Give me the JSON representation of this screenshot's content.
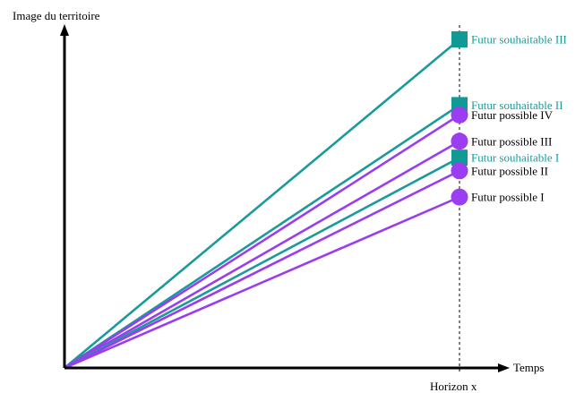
{
  "axes": {
    "y_label": "Image du territoire",
    "x_label": "Temps",
    "horizon_label": "Horizon x"
  },
  "colors": {
    "souhaitable": "#1a9a9a",
    "possible": "#9a3cf0",
    "marker_souhaitable": "#0f9a96",
    "marker_possible": "#9b3ef2",
    "axis": "#000000"
  },
  "futures": [
    {
      "id": "souhaitable-iii",
      "kind": "souhaitable",
      "label": "Futur souhaitable III",
      "level": 5
    },
    {
      "id": "souhaitable-ii",
      "kind": "souhaitable",
      "label": "Futur souhaitable II",
      "level": 4
    },
    {
      "id": "possible-iv",
      "kind": "possible",
      "label": "Futur possible IV",
      "level": 3.85
    },
    {
      "id": "possible-iii",
      "kind": "possible",
      "label": "Futur possible III",
      "level": 3.45
    },
    {
      "id": "souhaitable-i",
      "kind": "souhaitable",
      "label": "Futur souhaitable I",
      "level": 3.2
    },
    {
      "id": "possible-ii",
      "kind": "possible",
      "label": "Futur possible II",
      "level": 3.0
    },
    {
      "id": "possible-i",
      "kind": "possible",
      "label": "Futur possible I",
      "level": 2.6
    }
  ]
}
